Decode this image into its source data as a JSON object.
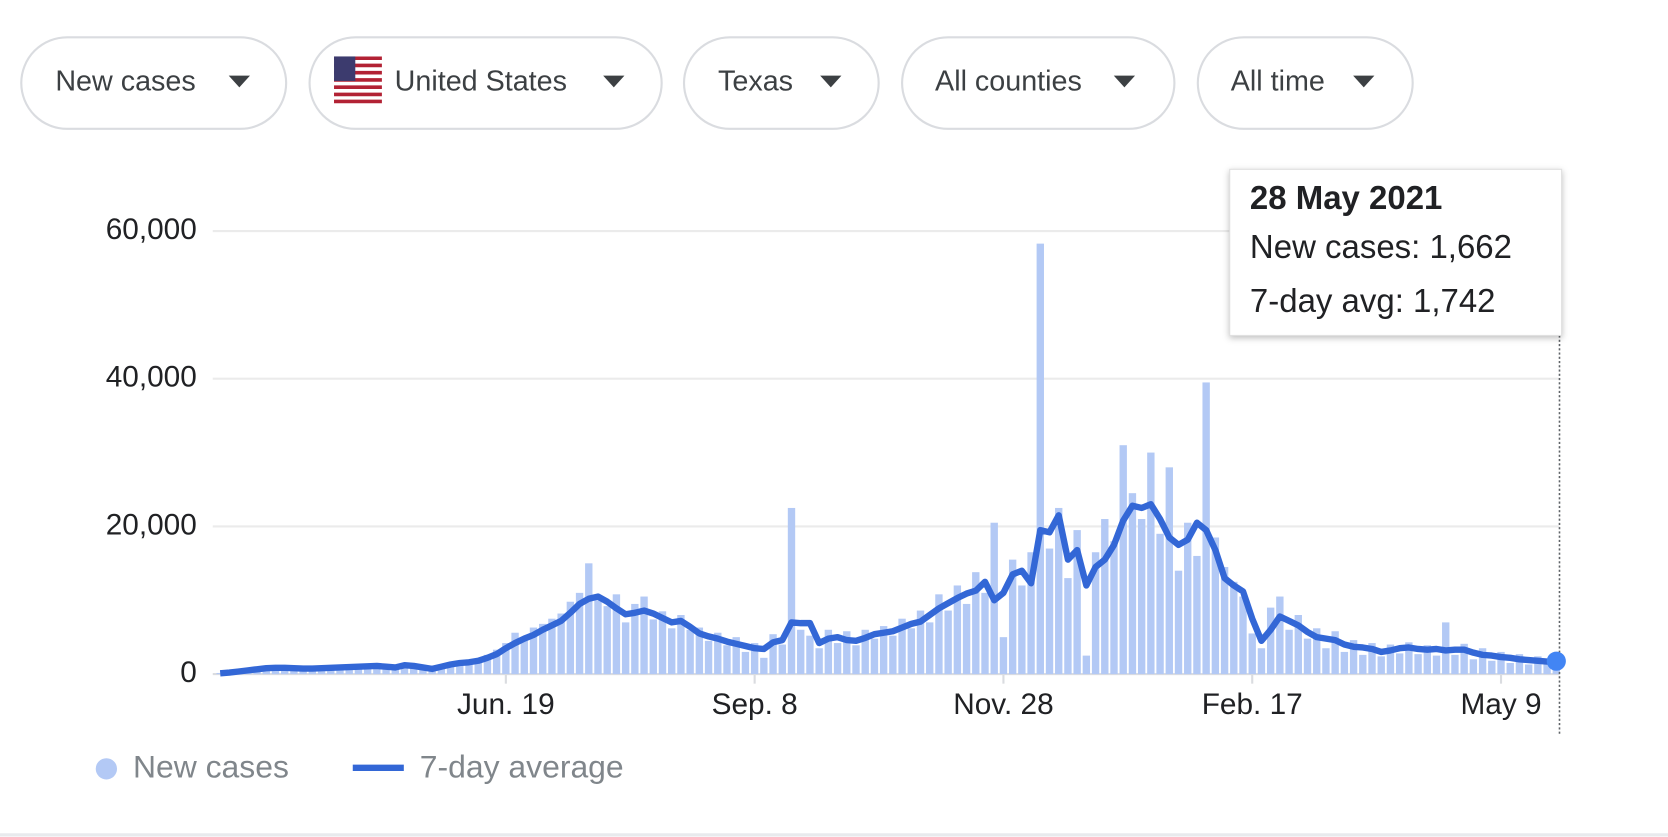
{
  "filters": [
    "New cases",
    "United States",
    "Texas",
    "All counties",
    "All time"
  ],
  "chart_data": {
    "type": "bar",
    "categories": [
      null,
      null,
      null,
      null,
      null,
      null,
      null,
      null,
      null,
      null,
      null,
      null,
      null,
      null,
      null,
      null,
      null,
      null,
      null,
      null,
      null,
      null,
      null,
      null,
      null,
      null,
      null,
      null,
      null,
      null,
      null,
      "Jun. 19",
      null,
      null,
      null,
      null,
      null,
      null,
      null,
      null,
      null,
      null,
      null,
      null,
      null,
      null,
      null,
      null,
      null,
      null,
      null,
      null,
      null,
      null,
      null,
      null,
      null,
      null,
      "Sep. 8",
      null,
      null,
      null,
      null,
      null,
      null,
      null,
      null,
      null,
      null,
      null,
      null,
      null,
      null,
      null,
      null,
      null,
      null,
      null,
      null,
      null,
      null,
      null,
      null,
      null,
      null,
      "Nov. 28",
      null,
      null,
      null,
      null,
      null,
      null,
      null,
      null,
      null,
      null,
      null,
      null,
      null,
      null,
      null,
      null,
      null,
      null,
      null,
      null,
      null,
      null,
      null,
      null,
      null,
      null,
      "Feb. 17",
      null,
      null,
      null,
      null,
      null,
      null,
      null,
      null,
      null,
      null,
      null,
      null,
      null,
      null,
      null,
      null,
      null,
      null,
      null,
      null,
      null,
      null,
      null,
      null,
      null,
      null,
      "May 9",
      null,
      null,
      null,
      null,
      null,
      null
    ],
    "series": [
      {
        "name": "New cases",
        "type": "bar",
        "color": "#b3c9f5",
        "values": [
          150,
          250,
          400,
          600,
          700,
          900,
          800,
          950,
          700,
          800,
          650,
          900,
          800,
          1000,
          900,
          1100,
          1000,
          1200,
          900,
          1000,
          1400,
          900,
          1000,
          600,
          1200,
          1400,
          1700,
          1500,
          2100,
          2600,
          3300,
          4200,
          5600,
          4500,
          6300,
          6800,
          7500,
          8200,
          9800,
          11000,
          15000,
          10000,
          9200,
          10800,
          7000,
          9500,
          10500,
          7400,
          8500,
          6200,
          8000,
          6000,
          6300,
          4500,
          5600,
          3900,
          5000,
          3000,
          4200,
          2200,
          5400,
          4000,
          22500,
          6000,
          5200,
          3500,
          6000,
          4200,
          5800,
          3900,
          6000,
          4800,
          6500,
          5200,
          7500,
          6200,
          8600,
          7000,
          10800,
          8600,
          12000,
          9500,
          13800,
          11000,
          20500,
          5000,
          15500,
          12000,
          16500,
          58300,
          17000,
          22500,
          13000,
          19500,
          2500,
          16500,
          21000,
          18000,
          31000,
          24500,
          21000,
          30000,
          19000,
          28000,
          14000,
          20500,
          16000,
          39500,
          18500,
          14500,
          12500,
          10500,
          5500,
          3500,
          9000,
          10500,
          6000,
          8000,
          4800,
          6200,
          3500,
          5800,
          3000,
          4600,
          2600,
          4200,
          2400,
          4000,
          2800,
          4300,
          2700,
          3900,
          2500,
          7000,
          2600,
          4100,
          2000,
          3500,
          1800,
          3000,
          1500,
          2700,
          1300,
          2400,
          1400,
          1662
        ]
      },
      {
        "name": "7-day average",
        "type": "line",
        "color": "#3367d6",
        "values": [
          100,
          200,
          350,
          500,
          650,
          800,
          850,
          850,
          800,
          750,
          750,
          800,
          850,
          900,
          950,
          1000,
          1050,
          1100,
          1000,
          900,
          1200,
          1100,
          900,
          700,
          1000,
          1300,
          1500,
          1600,
          1800,
          2200,
          2700,
          3500,
          4200,
          4800,
          5300,
          6000,
          6600,
          7200,
          8300,
          9500,
          10200,
          10500,
          9800,
          8900,
          8100,
          8300,
          8600,
          8200,
          7600,
          7000,
          7200,
          6400,
          5500,
          5100,
          4800,
          4400,
          4100,
          3800,
          3500,
          3400,
          4300,
          4600,
          7000,
          6900,
          6900,
          4200,
          4800,
          5000,
          4600,
          4500,
          4900,
          5400,
          5600,
          5800,
          6300,
          6800,
          7100,
          8000,
          8900,
          9600,
          10300,
          10900,
          11300,
          12500,
          10000,
          11000,
          13500,
          14000,
          12300,
          19500,
          19200,
          21500,
          15500,
          16800,
          12000,
          14500,
          15500,
          17500,
          20800,
          22800,
          22500,
          23000,
          21000,
          18500,
          17500,
          18200,
          20500,
          19500,
          16800,
          13000,
          12000,
          11200,
          7500,
          4500,
          6000,
          7800,
          7200,
          6600,
          5700,
          5000,
          4800,
          4600,
          4000,
          3700,
          3600,
          3400,
          3000,
          3200,
          3500,
          3600,
          3400,
          3300,
          3400,
          3200,
          3300,
          3300,
          2900,
          2600,
          2500,
          2300,
          2200,
          2000,
          1900,
          1800,
          1700,
          1742
        ]
      }
    ],
    "ylim": [
      0,
      60000
    ],
    "yticks": [
      0,
      {
        "value": 20000,
        "label": "20,000"
      },
      {
        "value": 40000,
        "label": "40,000"
      },
      {
        "value": 60000,
        "label": "60,000"
      }
    ],
    "grid": true,
    "legend": "bottom-left",
    "tooltip": {
      "title": "28 May 2021",
      "lines": [
        "New cases: 1,662",
        "7-day avg: 1,742"
      ]
    }
  }
}
